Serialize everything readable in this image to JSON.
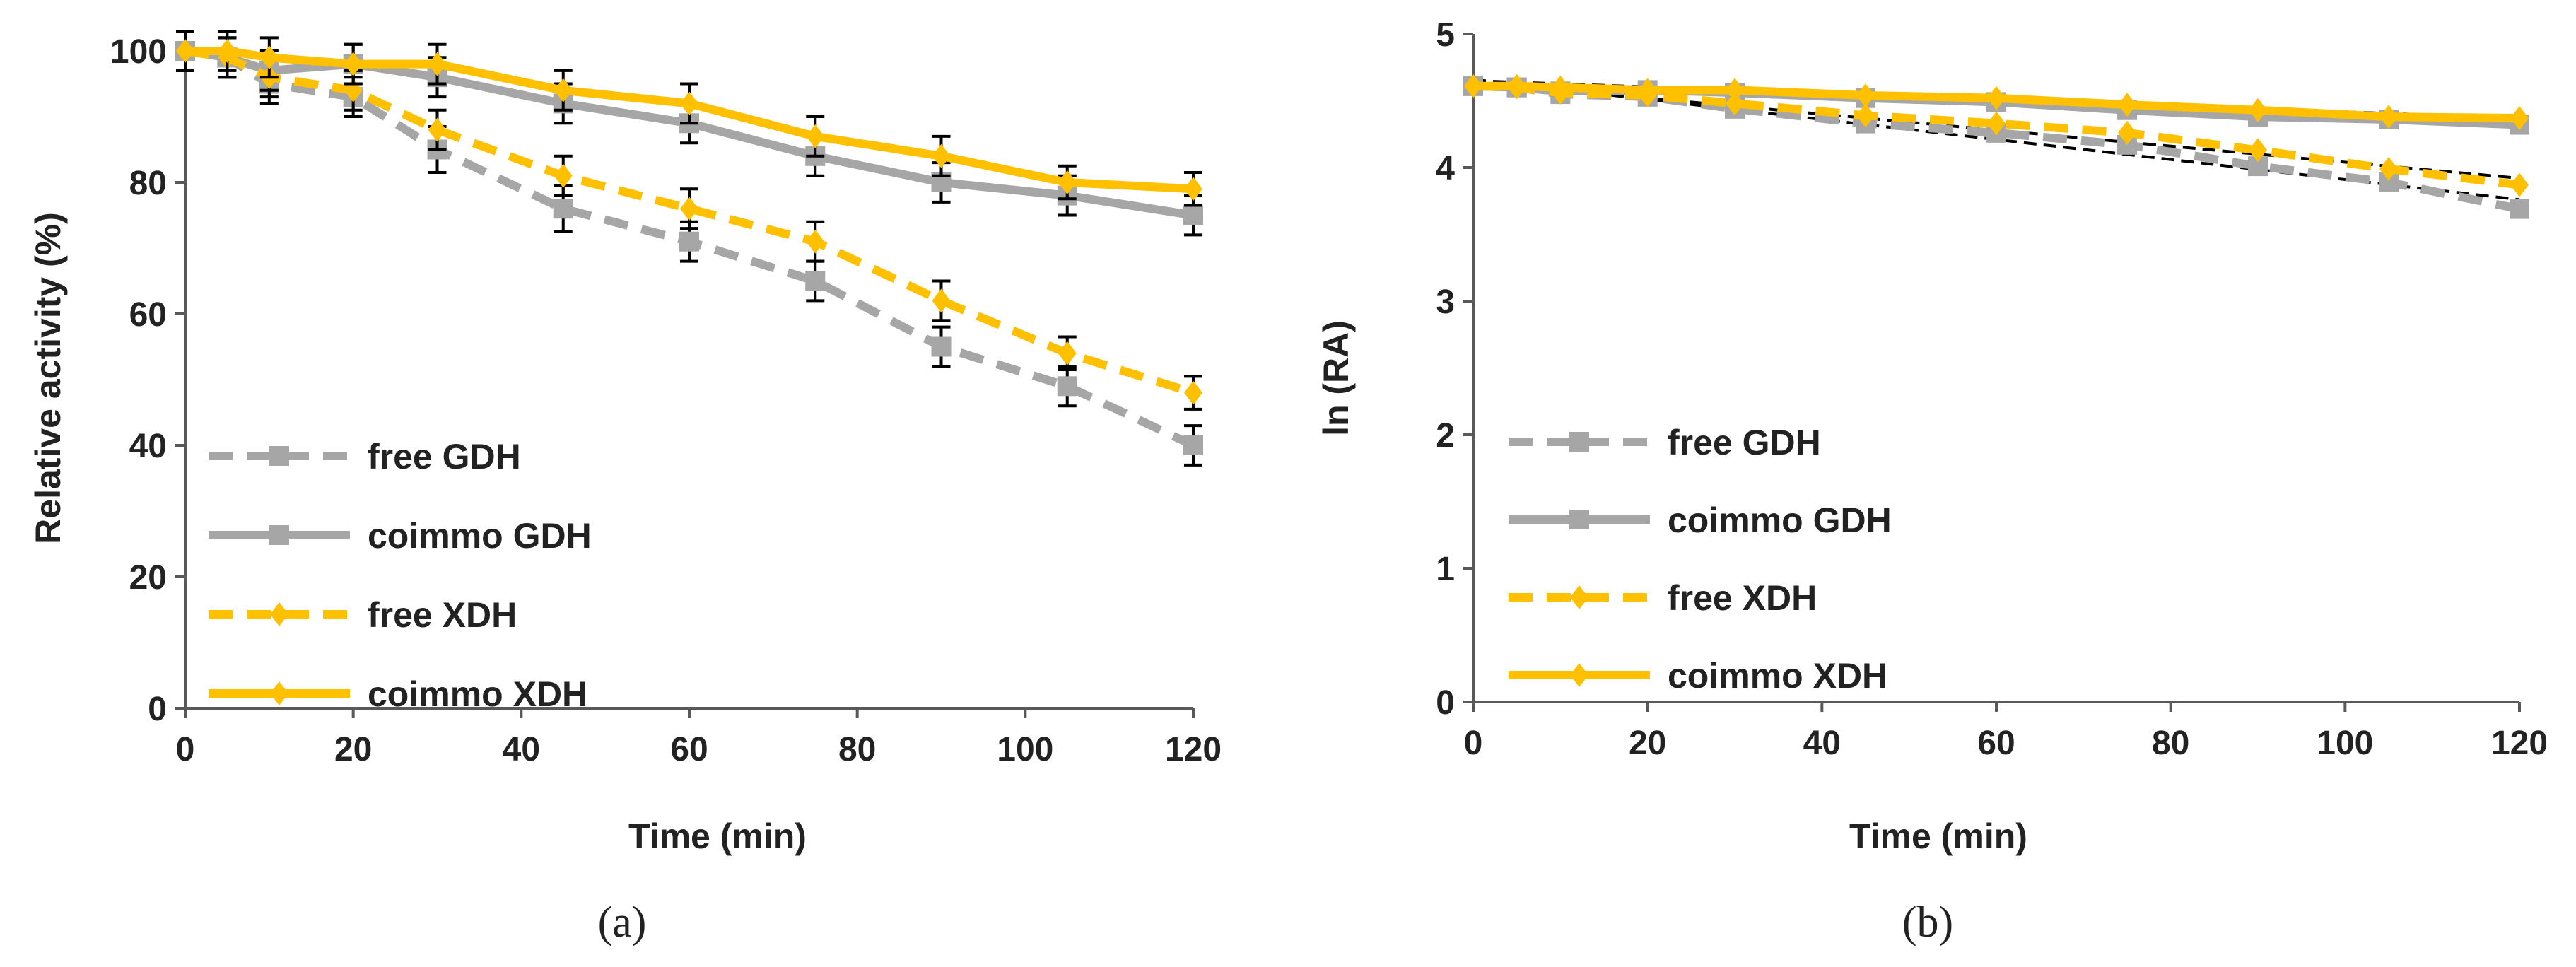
{
  "chart_data": [
    {
      "type": "line",
      "panel_label": "(a)",
      "xlabel": "Time (min)",
      "ylabel": "Relative activity (%)",
      "xlim": [
        0,
        120
      ],
      "ylim": [
        0,
        100
      ],
      "xticks": [
        "0",
        "20",
        "40",
        "60",
        "80",
        "100",
        "120"
      ],
      "yticks": [
        "0",
        "20",
        "40",
        "60",
        "80",
        "100"
      ],
      "legend_position": "lower-left",
      "grid": false,
      "x": [
        0,
        5,
        10,
        20,
        30,
        45,
        60,
        75,
        90,
        105,
        120
      ],
      "series": [
        {
          "name": "free GDH",
          "color": "#a6a6a6",
          "dash": true,
          "marker": "square",
          "values": [
            100,
            99,
            95,
            93,
            85,
            76,
            71,
            65,
            55,
            49,
            40
          ],
          "errors": [
            3,
            3,
            3,
            3,
            3.5,
            3.5,
            3,
            3,
            3,
            3,
            3
          ]
        },
        {
          "name": "coimmo GDH",
          "color": "#a6a6a6",
          "dash": false,
          "marker": "square",
          "values": [
            100,
            99,
            97,
            98,
            96,
            92,
            89,
            84,
            80,
            78,
            75
          ],
          "errors": [
            3,
            3,
            3,
            3,
            3,
            3,
            3,
            3,
            3,
            3,
            3
          ]
        },
        {
          "name": "free XDH",
          "color": "#ffc000",
          "dash": true,
          "marker": "diamond",
          "values": [
            100,
            99,
            96,
            94,
            88,
            81,
            76,
            71,
            62,
            54,
            48
          ],
          "errors": [
            3,
            3,
            3,
            3,
            3,
            3,
            3,
            3,
            3,
            2.5,
            2.5
          ]
        },
        {
          "name": "coimmo XDH",
          "color": "#ffc000",
          "dash": false,
          "marker": "diamond",
          "values": [
            100,
            100,
            99,
            98,
            98,
            94,
            92,
            87,
            84,
            80,
            79
          ],
          "errors": [
            3,
            3,
            3,
            3,
            3,
            3,
            3,
            3,
            3,
            2.5,
            2.5
          ]
        }
      ]
    },
    {
      "type": "line",
      "panel_label": "(b)",
      "xlabel": "Time (min)",
      "ylabel": "ln (RA)",
      "xlim": [
        0,
        120
      ],
      "ylim": [
        0,
        5
      ],
      "xticks": [
        "0",
        "20",
        "40",
        "60",
        "80",
        "100",
        "120"
      ],
      "yticks": [
        "0",
        "1",
        "2",
        "3",
        "4",
        "5"
      ],
      "legend_position": "lower-left",
      "grid": false,
      "x": [
        0,
        5,
        10,
        20,
        30,
        45,
        60,
        75,
        90,
        105,
        120
      ],
      "series": [
        {
          "name": "free GDH",
          "color": "#a6a6a6",
          "dash": true,
          "marker": "square",
          "values": [
            4.61,
            4.6,
            4.55,
            4.53,
            4.44,
            4.33,
            4.26,
            4.17,
            4.01,
            3.89,
            3.69
          ]
        },
        {
          "name": "coimmo GDH",
          "color": "#a6a6a6",
          "dash": false,
          "marker": "square",
          "values": [
            4.61,
            4.6,
            4.57,
            4.58,
            4.56,
            4.52,
            4.49,
            4.43,
            4.38,
            4.36,
            4.32
          ]
        },
        {
          "name": "free XDH",
          "color": "#ffc000",
          "dash": true,
          "marker": "diamond",
          "values": [
            4.61,
            4.6,
            4.56,
            4.54,
            4.48,
            4.39,
            4.33,
            4.26,
            4.13,
            3.99,
            3.87
          ]
        },
        {
          "name": "coimmo XDH",
          "color": "#ffc000",
          "dash": false,
          "marker": "diamond",
          "values": [
            4.61,
            4.61,
            4.6,
            4.58,
            4.58,
            4.54,
            4.52,
            4.47,
            4.43,
            4.38,
            4.37
          ]
        }
      ],
      "trendlines": [
        {
          "color": "#000000",
          "x": [
            0,
            120
          ],
          "values": [
            4.66,
            3.76
          ]
        },
        {
          "color": "#000000",
          "x": [
            0,
            120
          ],
          "values": [
            4.64,
            3.92
          ]
        },
        {
          "color": "#000000",
          "x": [
            0,
            120
          ],
          "values": [
            4.65,
            4.32
          ]
        },
        {
          "color": "#000000",
          "x": [
            0,
            120
          ],
          "values": [
            4.65,
            4.37
          ]
        }
      ]
    }
  ]
}
